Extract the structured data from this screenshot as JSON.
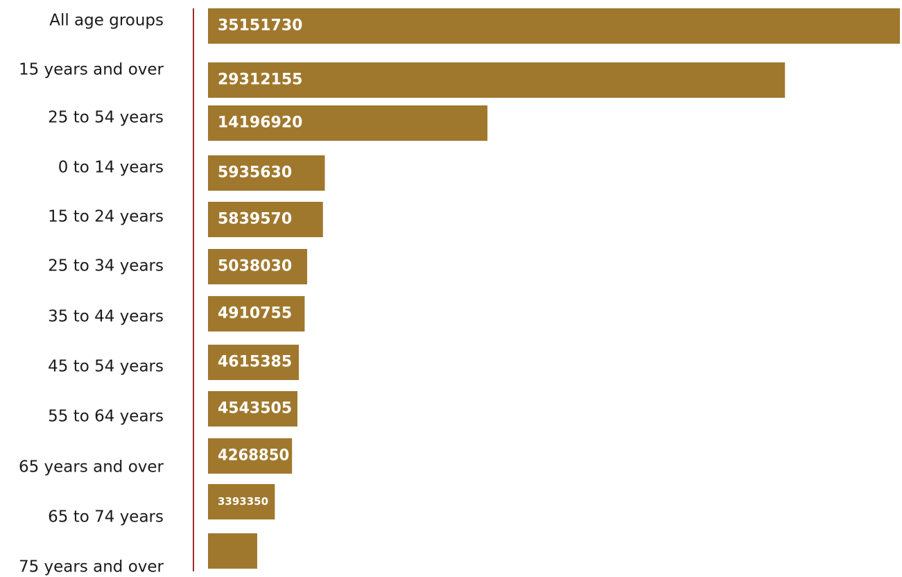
{
  "chart_data": {
    "type": "bar",
    "orientation": "horizontal",
    "title": "",
    "xlabel": "",
    "ylabel": "",
    "categories": [
      "All age groups",
      "15 years and over",
      "25 to 54 years",
      "0 to 14 years",
      "15 to 24 years",
      "25 to 34 years",
      "35 to 44 years",
      "45 to 54 years",
      "55 to 64 years",
      "65 years and over",
      "65 to 74 years",
      "75 years and over"
    ],
    "values": [
      35151730,
      29312155,
      14196920,
      5935630,
      5839570,
      5038030,
      4910755,
      4615385,
      4543505,
      4268850,
      3393350,
      2500000
    ],
    "data_labels": [
      "35151730",
      "29312155",
      "14196920",
      "5935630",
      "5839570",
      "5038030",
      "4910755",
      "4615385",
      "4543505",
      "4268850",
      "3393350",
      ""
    ],
    "xlim": [
      0,
      35151730
    ],
    "grid": false,
    "legend": "none",
    "colors": {
      "bar": "#a0782d",
      "axis_line": "#9b2b2b",
      "label_text": "#1a1a1a",
      "bar_label_text": "#ffffff"
    }
  }
}
